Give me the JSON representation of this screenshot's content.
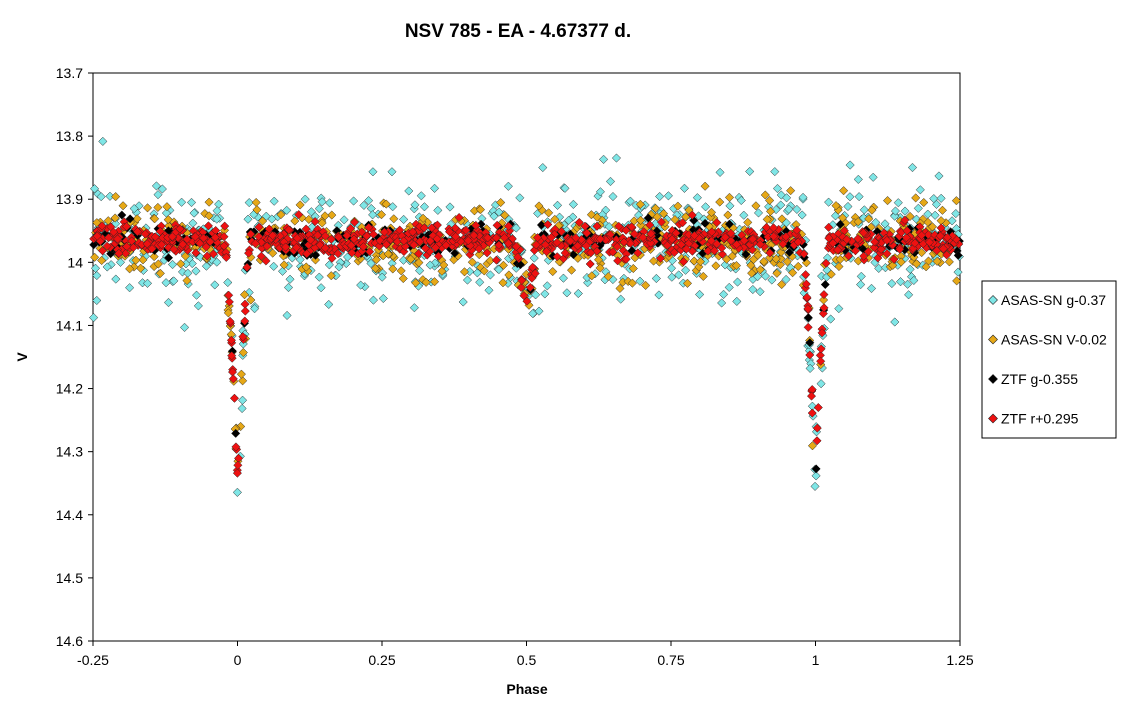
{
  "chart_data": {
    "type": "scatter",
    "title": "NSV 785 - EA - 4.67377  d.",
    "xlabel": "Phase",
    "ylabel": "V",
    "xlim": [
      -0.25,
      1.25
    ],
    "ylim": [
      13.7,
      14.6
    ],
    "y_inverted": true,
    "x_ticks": [
      -0.25,
      0,
      0.25,
      0.5,
      0.75,
      1,
      1.25
    ],
    "x_tick_labels": [
      "-0.25",
      "0",
      "0.25",
      "0.5",
      "0.75",
      "1",
      "1.25"
    ],
    "y_ticks": [
      13.7,
      13.8,
      13.9,
      14.0,
      14.1,
      14.2,
      14.3,
      14.4,
      14.5,
      14.6
    ],
    "y_tick_labels": [
      "13.7",
      "13.8",
      "13.9",
      "14",
      "14.1",
      "14.2",
      "14.3",
      "14.4",
      "14.5",
      "14.6"
    ],
    "grid": false,
    "legend_position": "right",
    "light_curve": {
      "baseline_mag": 13.965,
      "primary_minimum": {
        "phase": 0.0,
        "depth_mag": 14.34,
        "half_width_phase": 0.022
      },
      "secondary_minimum": {
        "phase": 0.5,
        "depth_mag": 14.085,
        "half_width_phase": 0.02
      }
    },
    "series": [
      {
        "name": "ASAS-SN g-0.37",
        "color": "#7fe6e6",
        "marker": "diamond",
        "scatter_mag": 0.045,
        "points": 700
      },
      {
        "name": "ASAS-SN V-0.02",
        "color": "#e6a817",
        "marker": "diamond",
        "scatter_mag": 0.03,
        "points": 650
      },
      {
        "name": "ZTF g-0.355",
        "color": "#000000",
        "marker": "diamond",
        "scatter_mag": 0.012,
        "points": 260
      },
      {
        "name": "ZTF r+0.295",
        "color": "#ee1111",
        "marker": "diamond",
        "scatter_mag": 0.012,
        "points": 900
      }
    ]
  }
}
